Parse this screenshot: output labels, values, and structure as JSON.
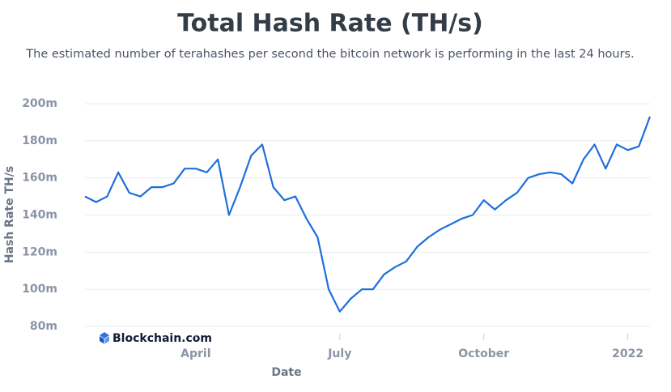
{
  "chart_data": {
    "type": "line",
    "title": "Total Hash Rate (TH/s)",
    "subtitle": "The estimated number of terahashes per second the bitcoin network is performing in the last 24 hours.",
    "watermark": "Blockchain.com",
    "x_label": "Date",
    "y_label": "Hash Rate TH/s",
    "categories": [
      null,
      null,
      null,
      null,
      null,
      null,
      null,
      null,
      null,
      null,
      "April",
      null,
      null,
      null,
      null,
      null,
      null,
      null,
      null,
      null,
      null,
      null,
      null,
      "July",
      null,
      null,
      null,
      null,
      null,
      null,
      null,
      null,
      null,
      null,
      null,
      null,
      "October",
      null,
      null,
      null,
      null,
      null,
      null,
      null,
      null,
      null,
      null,
      null,
      null,
      "2022",
      null,
      null
    ],
    "series": [
      {
        "name": "Hash Rate",
        "color": "#1e6fdc",
        "values": [
          150000000,
          147000000,
          150000000,
          163000000,
          152000000,
          150000000,
          155000000,
          155000000,
          157000000,
          165000000,
          165000000,
          163000000,
          170000000,
          140000000,
          155000000,
          172000000,
          178000000,
          155000000,
          148000000,
          150000000,
          138000000,
          128000000,
          100000000,
          88000000,
          95000000,
          100000000,
          100000000,
          108000000,
          112000000,
          115000000,
          123000000,
          128000000,
          132000000,
          135000000,
          138000000,
          140000000,
          148000000,
          143000000,
          148000000,
          152000000,
          160000000,
          162000000,
          163000000,
          162000000,
          157000000,
          170000000,
          178000000,
          165000000,
          178000000,
          175000000,
          177000000,
          193000000
        ]
      }
    ],
    "ylim": [
      80000000,
      200000000
    ],
    "yticks": [
      {
        "value": 80000000,
        "label": "80m"
      },
      {
        "value": 100000000,
        "label": "100m"
      },
      {
        "value": 120000000,
        "label": "120m"
      },
      {
        "value": 140000000,
        "label": "140m"
      },
      {
        "value": 160000000,
        "label": "160m"
      },
      {
        "value": 180000000,
        "label": "180m"
      },
      {
        "value": 200000000,
        "label": "200m"
      }
    ],
    "grid": true
  }
}
